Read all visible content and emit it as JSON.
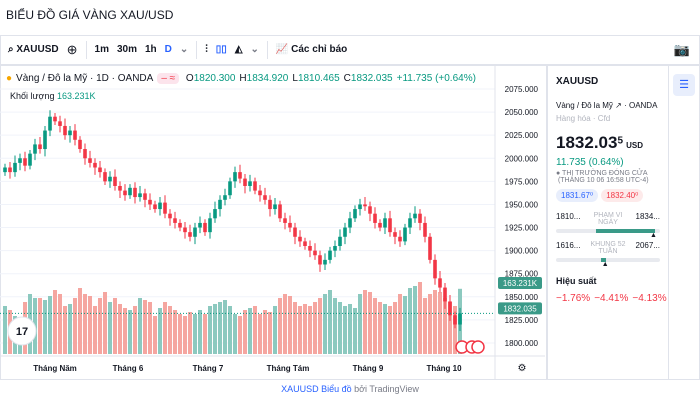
{
  "page_title": "BIỂU ĐỒ GIÁ VÀNG XAU/USD",
  "toolbar": {
    "symbol": "XAUUSD",
    "intervals": [
      "1m",
      "30m",
      "1h",
      "D"
    ],
    "indicators": "Các chỉ báo"
  },
  "legend": {
    "name": "Vàng / Đô la Mỹ · 1D · OANDA",
    "o_label": "O",
    "o": "1820.300",
    "h_label": "H",
    "h": "1834.920",
    "l_label": "L",
    "l": "1810.465",
    "c_label": "C",
    "c": "1832.035",
    "change": "+11.735 (+0.64%)",
    "volume_label": "Khối lượng",
    "volume": "163.231K"
  },
  "price_axis": [
    "2075.000",
    "2050.000",
    "2025.000",
    "2000.000",
    "1975.000",
    "1950.000",
    "1925.000",
    "1900.000",
    "1875.000",
    "1850.000",
    "1825.000",
    "1800.000"
  ],
  "price_badge": "1832.035",
  "volume_badge": "163.231K",
  "time_axis": [
    "Tháng Năm",
    "Tháng 6",
    "Tháng 7",
    "Tháng Tám",
    "Tháng 9",
    "Tháng 10"
  ],
  "colors": {
    "up": "#089981",
    "down": "#f23645",
    "up_vol": "#8cc9bf",
    "down_vol": "#f5a6a0"
  },
  "chart_data": {
    "type": "candlestick",
    "closes": [
      1990,
      1985,
      1995,
      2000,
      1992,
      2005,
      2015,
      2010,
      2030,
      2045,
      2040,
      2035,
      2025,
      2030,
      2020,
      2010,
      2000,
      1995,
      1990,
      1985,
      1975,
      1980,
      1970,
      1965,
      1960,
      1968,
      1958,
      1962,
      1955,
      1950,
      1945,
      1952,
      1940,
      1935,
      1930,
      1925,
      1920,
      1915,
      1925,
      1930,
      1920,
      1935,
      1945,
      1955,
      1960,
      1975,
      1985,
      1978,
      1970,
      1975,
      1965,
      1960,
      1955,
      1945,
      1950,
      1935,
      1930,
      1925,
      1915,
      1910,
      1905,
      1900,
      1895,
      1885,
      1890,
      1900,
      1905,
      1915,
      1925,
      1935,
      1945,
      1950,
      1948,
      1940,
      1930,
      1925,
      1935,
      1920,
      1915,
      1910,
      1925,
      1935,
      1940,
      1930,
      1915,
      1890,
      1870,
      1860,
      1845,
      1830,
      1820,
      1832
    ],
    "volumes": [
      120,
      110,
      95,
      90,
      130,
      150,
      140,
      140,
      135,
      145,
      160,
      150,
      120,
      125,
      140,
      165,
      150,
      145,
      120,
      140,
      155,
      130,
      140,
      125,
      115,
      110,
      120,
      140,
      135,
      130,
      95,
      115,
      130,
      120,
      110,
      100,
      95,
      105,
      100,
      110,
      100,
      120,
      125,
      130,
      135,
      120,
      100,
      95,
      110,
      115,
      120,
      100,
      110,
      105,
      120,
      140,
      150,
      145,
      130,
      120,
      125,
      120,
      130,
      140,
      150,
      160,
      140,
      130,
      120,
      125,
      115,
      150,
      160,
      155,
      140,
      130,
      125,
      120,
      130,
      150,
      145,
      165,
      170,
      180,
      140,
      150,
      160,
      155,
      140,
      130,
      120,
      163
    ],
    "ylim": [
      1785,
      2085
    ]
  },
  "side": {
    "symbol": "XAUUSD",
    "name": "Vàng / Đô la Mỹ",
    "exchange": "OANDA",
    "category": "Hàng hóa · Cfd",
    "price": "1832.03",
    "price_sup": "5",
    "currency": "USD",
    "change": "11.735 (0.64%)",
    "status": "THỊ TRƯỜNG ĐÓNG CỬA",
    "status_time": "(THÁNG 10 06 16:58 UTC-4)",
    "bid": "1831.67⁰",
    "ask": "1832.40⁰",
    "day_low": "1810...",
    "day_label": "PHẠM VI NGÀY",
    "day_high": "1834...",
    "week_low": "1616...",
    "week_label": "KHUNG 52 TUẦN",
    "week_high": "2067...",
    "perf_title": "Hiệu suất",
    "perf": [
      "−1.76%",
      "−4.41%",
      "−4.13%"
    ]
  },
  "footer": {
    "link": "XAUUSD Biểu đồ",
    "by": " bởi TradingView"
  }
}
